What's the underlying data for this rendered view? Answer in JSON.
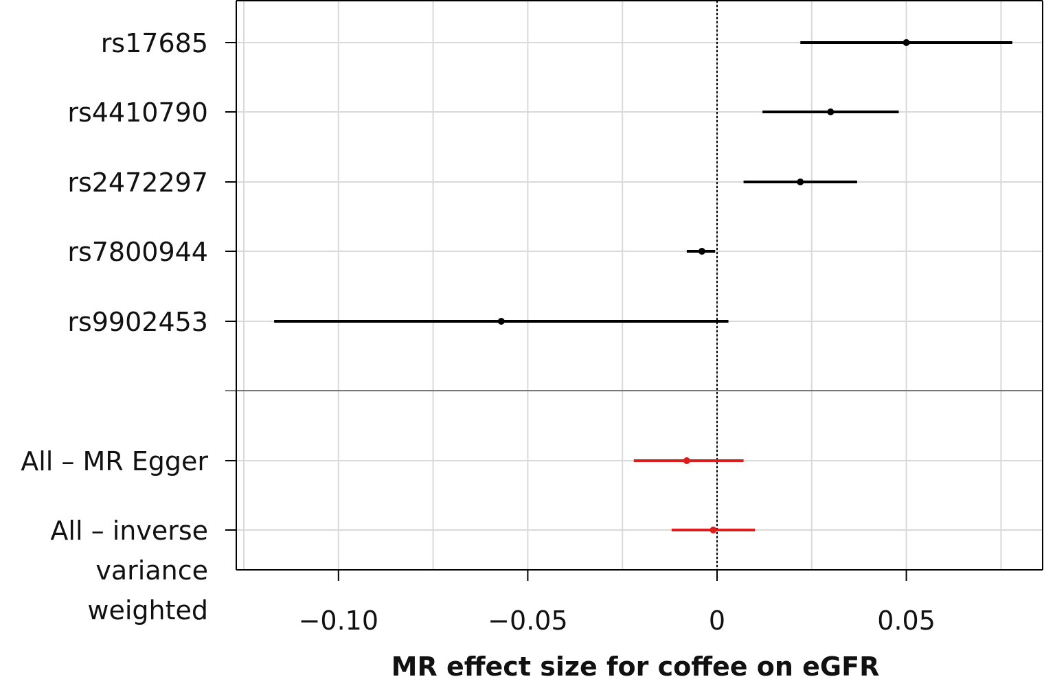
{
  "chart_data": {
    "type": "forest",
    "xlabel": "MR effect size for coffee on eGFR",
    "xlim": [
      -0.127,
      0.086
    ],
    "xticks": [
      -0.1,
      -0.05,
      0,
      0.05
    ],
    "xtick_labels": [
      "−0.10",
      "−0.05",
      "0",
      "0.05"
    ],
    "minor_gridlines": [
      -0.125,
      -0.075,
      -0.025,
      0.025,
      0.075
    ],
    "reference_line": 0,
    "grid": true,
    "rows": [
      {
        "label": [
          "rs17685"
        ],
        "estimate": 0.05,
        "lower": 0.022,
        "upper": 0.078,
        "group": "snp"
      },
      {
        "label": [
          "rs4410790"
        ],
        "estimate": 0.03,
        "lower": 0.012,
        "upper": 0.048,
        "group": "snp"
      },
      {
        "label": [
          "rs2472297"
        ],
        "estimate": 0.022,
        "lower": 0.007,
        "upper": 0.037,
        "group": "snp"
      },
      {
        "label": [
          "rs7800944"
        ],
        "estimate": -0.004,
        "lower": -0.008,
        "upper": -0.0005,
        "group": "snp"
      },
      {
        "label": [
          "rs9902453"
        ],
        "estimate": -0.057,
        "lower": -0.117,
        "upper": 0.003,
        "group": "snp"
      },
      {
        "label": [
          "All – MR Egger"
        ],
        "estimate": -0.008,
        "lower": -0.022,
        "upper": 0.007,
        "group": "summary"
      },
      {
        "label": [
          "All – inverse",
          "variance",
          "weighted"
        ],
        "estimate": -0.001,
        "lower": -0.012,
        "upper": 0.01,
        "group": "summary"
      }
    ],
    "colors": {
      "snp": "#000000",
      "summary": "#dd1c1c",
      "grid": "#d9d9d9",
      "separator": "#777777"
    }
  }
}
